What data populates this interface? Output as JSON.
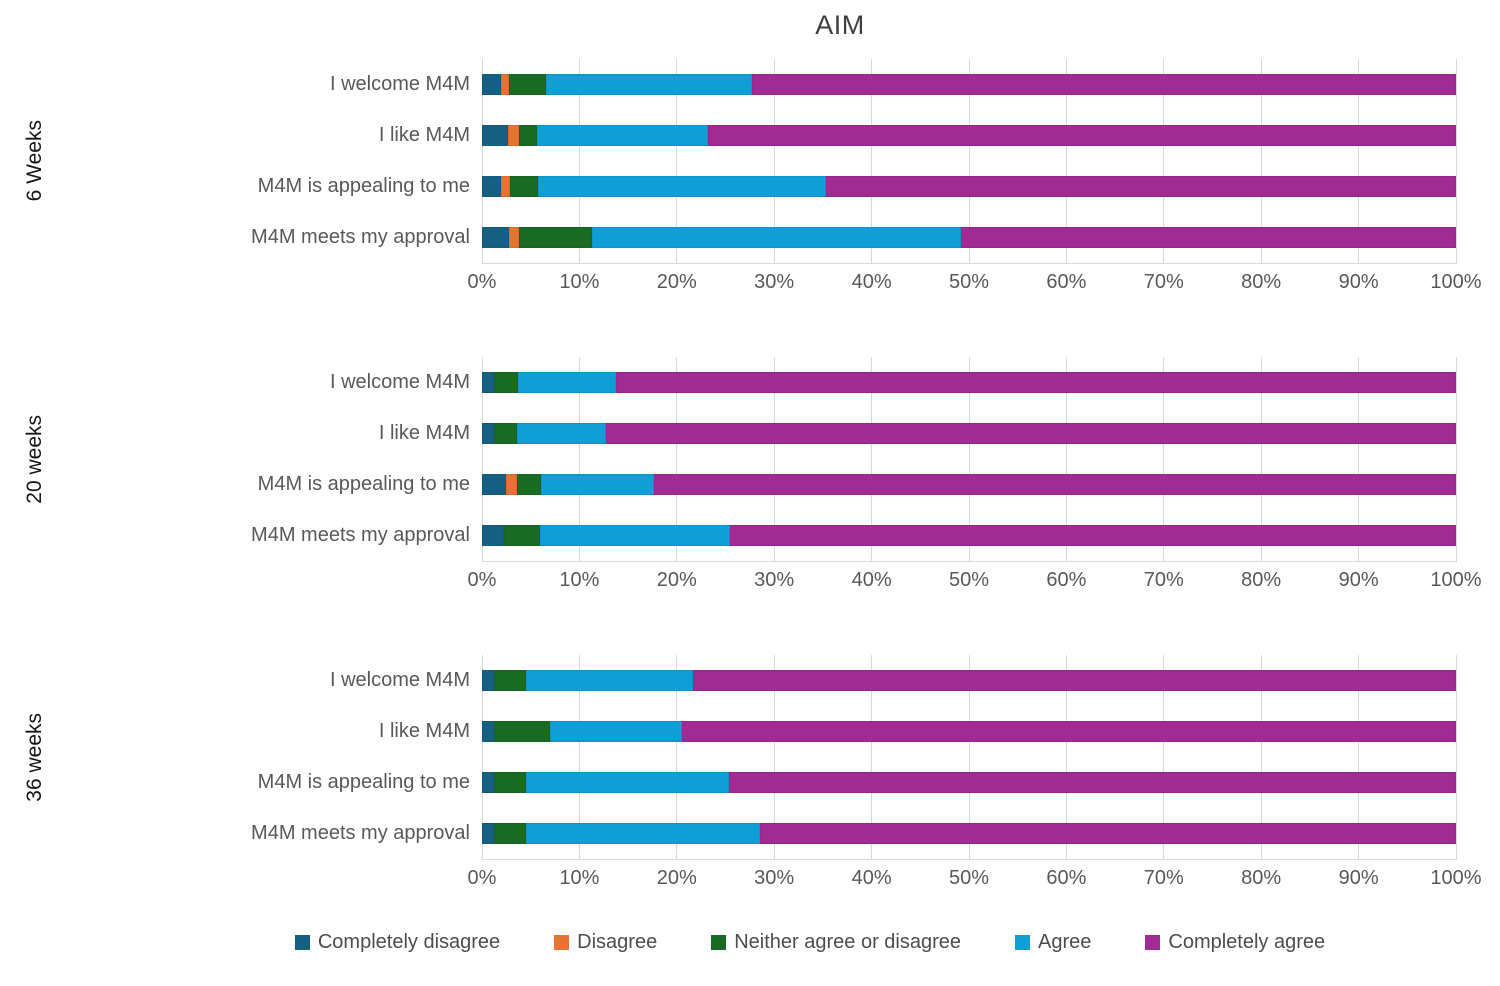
{
  "chart_data": {
    "type": "bar",
    "stacked": true,
    "orientation": "horizontal",
    "title": "AIM",
    "xlim": [
      0,
      100
    ],
    "grid": true,
    "axis_tick_labels": [
      "0%",
      "10%",
      "20%",
      "30%",
      "40%",
      "50%",
      "60%",
      "70%",
      "80%",
      "90%",
      "100%"
    ],
    "legend_position": "bottom",
    "legend": [
      {
        "label": "Completely disagree",
        "color": "#156082"
      },
      {
        "label": "Disagree",
        "color": "#E97132"
      },
      {
        "label": "Neither agree or disagree",
        "color": "#196B24"
      },
      {
        "label": "Agree",
        "color": "#0F9ED5"
      },
      {
        "label": "Completely agree",
        "color": "#A02B93"
      }
    ],
    "panels": [
      {
        "group": "6 Weeks",
        "rows": [
          {
            "label": "I welcome M4M",
            "values": [
              1.9,
              0.9,
              3.8,
              21.1,
              72.3
            ]
          },
          {
            "label": "I like M4M",
            "values": [
              2.7,
              1.1,
              1.8,
              17.6,
              76.8
            ]
          },
          {
            "label": "M4M is appealing to me",
            "values": [
              2.0,
              0.9,
              2.8,
              29.6,
              64.7
            ]
          },
          {
            "label": "M4M meets my approval",
            "values": [
              2.8,
              1.0,
              7.5,
              37.9,
              50.8
            ]
          }
        ]
      },
      {
        "group": "20 weeks",
        "rows": [
          {
            "label": "I welcome M4M",
            "values": [
              1.2,
              0,
              2.5,
              10.1,
              86.2
            ]
          },
          {
            "label": "I like M4M",
            "values": [
              1.2,
              0,
              2.4,
              9.1,
              87.3
            ]
          },
          {
            "label": "M4M is appealing to me",
            "values": [
              2.5,
              1.1,
              2.5,
              11.6,
              82.3
            ]
          },
          {
            "label": "M4M meets my approval",
            "values": [
              2.3,
              0,
              3.7,
              19.5,
              74.5
            ]
          }
        ]
      },
      {
        "group": "36 weeks",
        "rows": [
          {
            "label": "I welcome M4M",
            "values": [
              1.2,
              0,
              3.3,
              17.2,
              78.3
            ]
          },
          {
            "label": "I like M4M",
            "values": [
              1.2,
              0,
              5.8,
              13.5,
              79.5
            ]
          },
          {
            "label": "M4M is appealing to me",
            "values": [
              1.2,
              0,
              3.3,
              20.9,
              74.6
            ]
          },
          {
            "label": "M4M meets my approval",
            "values": [
              1.2,
              0,
              3.3,
              24.0,
              71.5
            ]
          }
        ]
      }
    ],
    "colors": {
      "gridline": "#D9D9D9",
      "axis_text": "#595959",
      "title_text": "#404040",
      "group_label_text": "#171717"
    }
  }
}
